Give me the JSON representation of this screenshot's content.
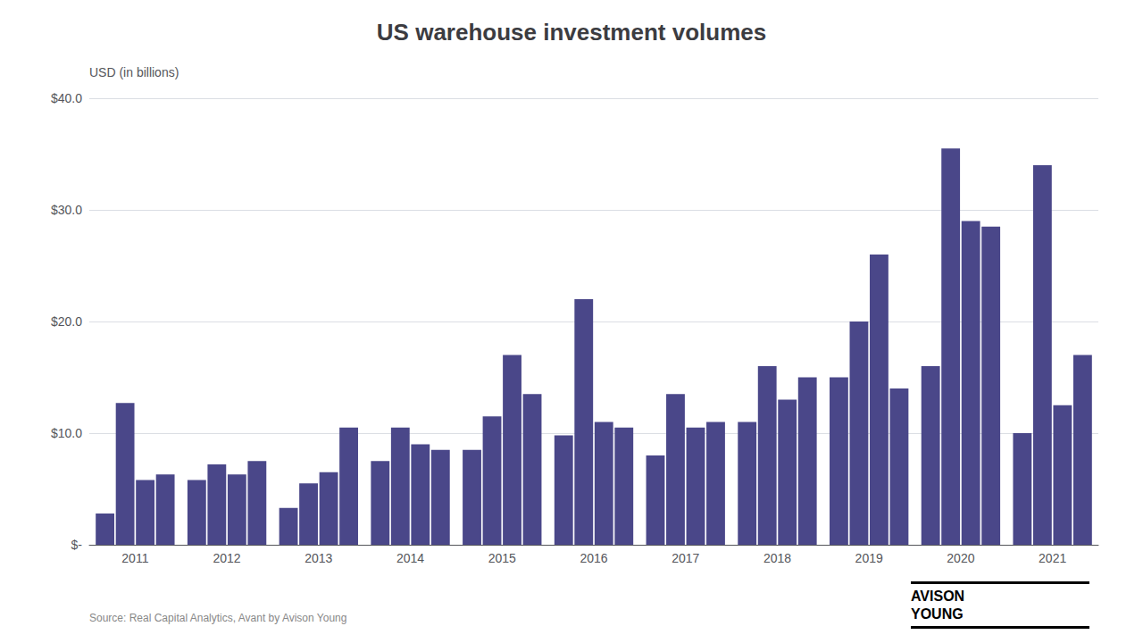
{
  "chart_data": {
    "type": "bar",
    "title": "US warehouse investment volumes",
    "ylabel": "USD (in billions)",
    "annotations": [
      "Source: Real Capital Analytics, Avant by Avison Young",
      "AVISON",
      "YOUNG"
    ],
    "categories": [
      "2011",
      "2012",
      "2013",
      "2014",
      "2015",
      "2016",
      "2017",
      "2018",
      "2019",
      "2020",
      "2021"
    ],
    "series": [
      {
        "color": "#4a4789",
        "values": [
          2.8,
          5.8,
          3.3,
          7.5,
          8.5,
          9.8,
          8.0,
          11.0,
          15.0,
          16.0,
          10.0
        ]
      },
      {
        "color": "#4a4789",
        "values": [
          12.7,
          7.2,
          5.5,
          10.5,
          11.5,
          22.0,
          13.5,
          16.0,
          20.0,
          35.5,
          34.0
        ]
      },
      {
        "color": "#4a4789",
        "values": [
          5.8,
          6.3,
          6.5,
          9.0,
          17.0,
          11.0,
          10.5,
          13.0,
          26.0,
          29.0,
          12.5
        ]
      },
      {
        "color": "#4a4789",
        "values": [
          6.3,
          7.5,
          10.5,
          8.5,
          13.5,
          10.5,
          11.0,
          15.0,
          14.0,
          28.5,
          17.0
        ]
      }
    ],
    "ylim": [
      0,
      40
    ],
    "yticks": [
      {
        "value": 0,
        "label": "$-"
      },
      {
        "value": 10,
        "label": "$10.0"
      },
      {
        "value": 20,
        "label": "$20.0"
      },
      {
        "value": 30,
        "label": "$30.0"
      },
      {
        "value": 40,
        "label": "$40.0"
      }
    ],
    "grid": true
  }
}
